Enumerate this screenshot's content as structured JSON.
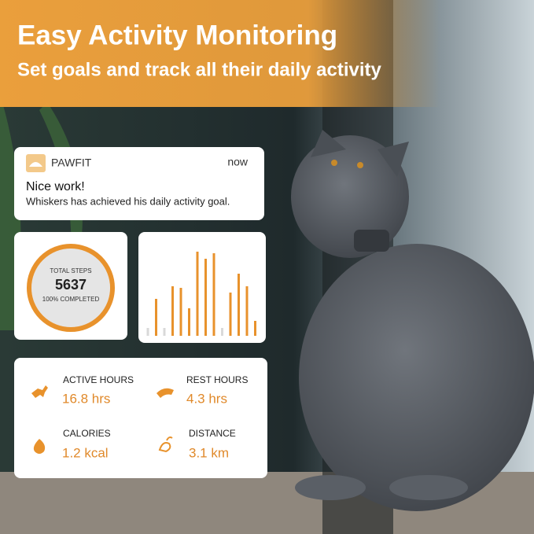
{
  "header": {
    "title": "Easy Activity Monitoring",
    "subtitle": "Set goals and track all their daily activity"
  },
  "notification": {
    "app": "PAWFIT",
    "time": "now",
    "title": "Nice work!",
    "body": "Whiskers has achieved his daily activity goal."
  },
  "steps": {
    "label": "TOTAL STEPS",
    "value": "5637",
    "status": "100% COMPLETED"
  },
  "activity_bars": {
    "values": [
      10,
      47,
      10,
      63,
      61,
      35,
      107,
      98,
      105,
      10,
      55,
      79,
      63,
      19
    ],
    "colors": [
      "#d9d9d9",
      "#e8922c",
      "#d9d9d9",
      "#e8922c",
      "#e8922c",
      "#e8922c",
      "#e8922c",
      "#e8922c",
      "#e8922c",
      "#d9d9d9",
      "#e8922c",
      "#e8922c",
      "#e8922c",
      "#e8922c"
    ]
  },
  "stats": [
    {
      "label": "ACTIVE HOURS",
      "value": "16.8 hrs"
    },
    {
      "label": "REST HOURS",
      "value": "4.3 hrs"
    },
    {
      "label": "CALORIES",
      "value": "1.2 kcal"
    },
    {
      "label": "DISTANCE",
      "value": "3.1 km"
    }
  ]
}
